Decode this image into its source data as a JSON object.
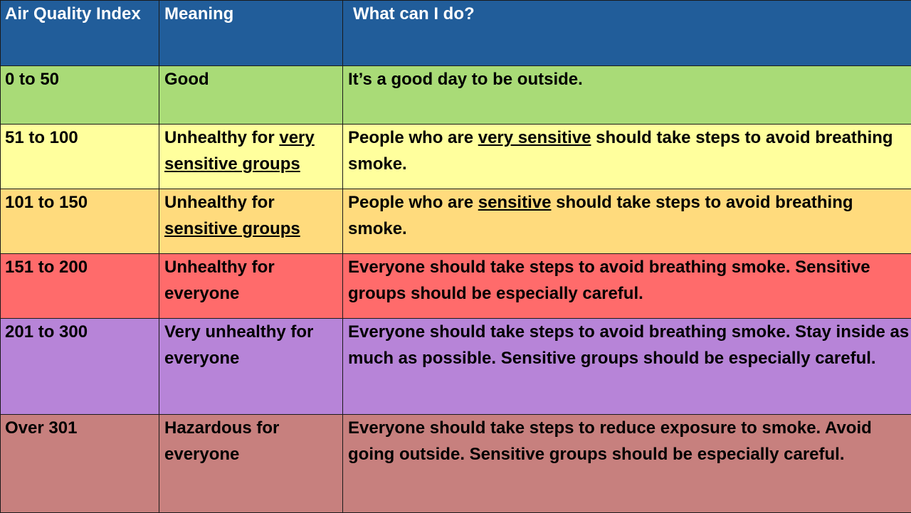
{
  "colors": {
    "header": "#215d9a",
    "border": "#1a1a1a"
  },
  "header": {
    "aqi": "Air Quality Index",
    "meaning": "Meaning",
    "action": "What can I do?"
  },
  "rows": [
    {
      "aqi": "0 to 50",
      "color": "#a9db77",
      "meaning": [
        {
          "text": "Good"
        }
      ],
      "action": [
        {
          "text": "It’s a good day to be outside."
        }
      ]
    },
    {
      "aqi": "51 to 100",
      "color": "#ffff9d",
      "meaning": [
        {
          "text": "Unhealthy for "
        },
        {
          "text": "very sensitive groups",
          "underline": true
        }
      ],
      "action": [
        {
          "text": "People who are "
        },
        {
          "text": "very sensitive",
          "underline": true
        },
        {
          "text": " should take steps to avoid breathing smoke."
        }
      ]
    },
    {
      "aqi": "101 to 150",
      "color": "#ffdb7d",
      "meaning": [
        {
          "text": "Unhealthy for "
        },
        {
          "text": "sensitive groups",
          "underline": true
        }
      ],
      "action": [
        {
          "text": "People who are "
        },
        {
          "text": "sensitive",
          "underline": true
        },
        {
          "text": " should take steps to avoid breathing smoke."
        }
      ]
    },
    {
      "aqi": "151 to 200",
      "color": "#ff6b6b",
      "meaning": [
        {
          "text": "Unhealthy for everyone"
        }
      ],
      "action": [
        {
          "text": "Everyone should take steps to avoid breathing smoke. Sensitive groups should be especially careful."
        }
      ]
    },
    {
      "aqi": "201 to 300",
      "color": "#b784d8",
      "meaning": [
        {
          "text": "Very unhealthy for everyone"
        }
      ],
      "action": [
        {
          "text": "Everyone should take steps to avoid breathing smoke. Stay inside as much as possible. Sensitive groups should be especially careful."
        }
      ]
    },
    {
      "aqi": "Over 301",
      "color": "#c7807e",
      "meaning": [
        {
          "text": "Hazardous for everyone"
        }
      ],
      "action": [
        {
          "text": "Everyone should take steps to reduce exposure to smoke. Avoid going outside. Sensitive groups should be especially careful."
        }
      ]
    }
  ]
}
